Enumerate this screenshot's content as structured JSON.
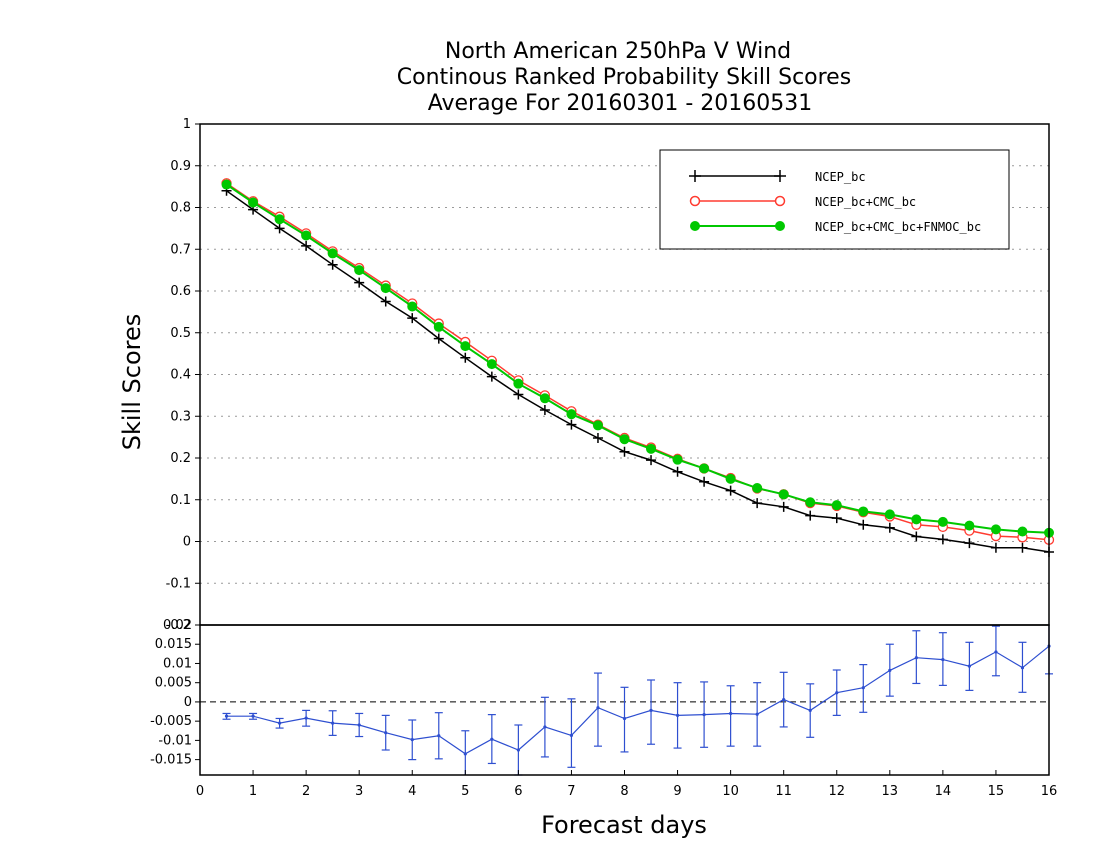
{
  "colors": {
    "ncep": "#000000",
    "cmc": "#ff3b30",
    "fnmoc": "#00c800",
    "diff": "#2e4fd0",
    "grid": "#9a9a9a"
  },
  "chart_data": [
    {
      "type": "line",
      "title": [
        "North American 250hPa V Wind",
        "Continous Ranked Probability Skill Scores",
        "Average For 20160301 - 20160531"
      ],
      "xlabel": "Forecast days",
      "ylabel": "Skill Scores",
      "xlim": [
        0,
        16
      ],
      "ylim": [
        -0.2,
        1
      ],
      "yticks": [
        -0.2,
        -0.1,
        0,
        0.1,
        0.2,
        0.3,
        0.4,
        0.5,
        0.6,
        0.7,
        0.8,
        0.9,
        1
      ],
      "ytick_labels": [
        "-0.2",
        "-0.1",
        "0",
        "0.1",
        "0.2",
        "0.3",
        "0.4",
        "0.5",
        "0.6",
        "0.7",
        "0.8",
        "0.9",
        "1"
      ],
      "grid": true,
      "legend_position": "top-right",
      "x": [
        0.5,
        1,
        1.5,
        2,
        2.5,
        3,
        3.5,
        4,
        4.5,
        5,
        5.5,
        6,
        6.5,
        7,
        7.5,
        8,
        8.5,
        9,
        9.5,
        10,
        10.5,
        11,
        11.5,
        12,
        12.5,
        13,
        13.5,
        14,
        14.5,
        15,
        15.5,
        16
      ],
      "series": [
        {
          "name": "NCEP_bc",
          "marker": "plus",
          "values": [
            0.84,
            0.795,
            0.75,
            0.708,
            0.663,
            0.62,
            0.575,
            0.535,
            0.486,
            0.44,
            0.395,
            0.352,
            0.315,
            0.28,
            0.248,
            0.215,
            0.195,
            0.167,
            0.143,
            0.122,
            0.092,
            0.083,
            0.062,
            0.056,
            0.04,
            0.033,
            0.012,
            0.005,
            -0.004,
            -0.015,
            -0.015,
            -0.025
          ]
        },
        {
          "name": "NCEP_bc+CMC_bc",
          "marker": "open-circle",
          "values": [
            0.858,
            0.815,
            0.778,
            0.738,
            0.695,
            0.655,
            0.613,
            0.57,
            0.522,
            0.478,
            0.433,
            0.386,
            0.35,
            0.312,
            0.28,
            0.248,
            0.225,
            0.198,
            0.175,
            0.152,
            0.127,
            0.113,
            0.092,
            0.085,
            0.07,
            0.06,
            0.04,
            0.035,
            0.026,
            0.013,
            0.01,
            0.004
          ]
        },
        {
          "name": "NCEP_bc+CMC_bc+FNMOC_bc",
          "marker": "filled-circle",
          "values": [
            0.855,
            0.812,
            0.772,
            0.733,
            0.69,
            0.65,
            0.607,
            0.563,
            0.514,
            0.468,
            0.425,
            0.378,
            0.343,
            0.305,
            0.278,
            0.245,
            0.222,
            0.196,
            0.175,
            0.15,
            0.128,
            0.113,
            0.094,
            0.087,
            0.072,
            0.065,
            0.053,
            0.047,
            0.038,
            0.029,
            0.024,
            0.021
          ]
        }
      ]
    },
    {
      "type": "line",
      "xlabel": "Forecast days",
      "xlim": [
        0,
        16
      ],
      "ylim": [
        -0.019,
        0.02
      ],
      "xticks": [
        0,
        1,
        2,
        3,
        4,
        5,
        6,
        7,
        8,
        9,
        10,
        11,
        12,
        13,
        14,
        15,
        16
      ],
      "xtick_labels": [
        "0",
        "1",
        "2",
        "3",
        "4",
        "5",
        "6",
        "7",
        "8",
        "9",
        "10",
        "11",
        "12",
        "13",
        "14",
        "15",
        "16"
      ],
      "yticks": [
        -0.015,
        -0.01,
        -0.005,
        0,
        0.005,
        0.01,
        0.015,
        0.02
      ],
      "ytick_labels": [
        "-0.015",
        "-0.01",
        "-0.005",
        "0",
        "0.005",
        "0.01",
        "0.015",
        "0.02"
      ],
      "zero_line": true,
      "x": [
        0.5,
        1,
        1.5,
        2,
        2.5,
        3,
        3.5,
        4,
        4.5,
        5,
        5.5,
        6,
        6.5,
        7,
        7.5,
        8,
        8.5,
        9,
        9.5,
        10,
        10.5,
        11,
        11.5,
        12,
        12.5,
        13,
        13.5,
        14,
        14.5,
        15,
        15.5,
        16
      ],
      "values": [
        -0.0037,
        -0.0037,
        -0.0055,
        -0.0042,
        -0.0055,
        -0.006,
        -0.008,
        -0.0098,
        -0.0088,
        -0.0135,
        -0.0097,
        -0.0125,
        -0.0065,
        -0.0087,
        -0.0015,
        -0.0043,
        -0.0022,
        -0.0035,
        -0.0033,
        -0.003,
        -0.0032,
        0.0006,
        -0.0022,
        0.0024,
        0.0037,
        0.0082,
        0.0115,
        0.011,
        0.0093,
        0.013,
        0.0089,
        0.0145
      ],
      "error_low": [
        -0.0045,
        -0.0045,
        -0.0068,
        -0.0063,
        -0.0087,
        -0.009,
        -0.0125,
        -0.015,
        -0.0148,
        -0.0195,
        -0.016,
        -0.019,
        -0.0143,
        -0.017,
        -0.0115,
        -0.013,
        -0.011,
        -0.012,
        -0.0118,
        -0.0115,
        -0.0115,
        -0.0065,
        -0.0092,
        -0.0035,
        -0.0027,
        0.0015,
        0.0048,
        0.0043,
        0.003,
        0.0068,
        0.0025,
        0.0073
      ],
      "error_high": [
        -0.003,
        -0.003,
        -0.0043,
        -0.0022,
        -0.0023,
        -0.003,
        -0.0035,
        -0.0047,
        -0.0028,
        -0.0075,
        -0.0033,
        -0.006,
        0.0012,
        0.0008,
        0.0075,
        0.0038,
        0.0057,
        0.005,
        0.0052,
        0.0042,
        0.005,
        0.0077,
        0.0047,
        0.0083,
        0.0097,
        0.015,
        0.0185,
        0.018,
        0.0155,
        0.0197,
        0.0155,
        0.021
      ]
    }
  ]
}
